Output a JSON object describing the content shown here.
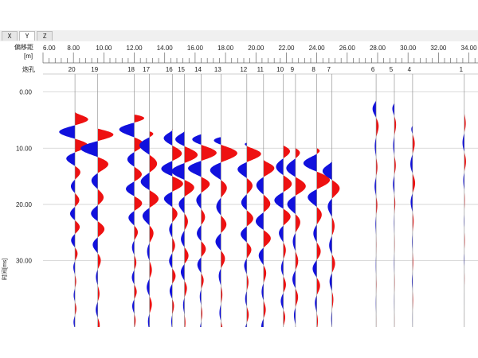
{
  "tabs": [
    {
      "label": "X",
      "active": false
    },
    {
      "label": "Y",
      "active": true
    },
    {
      "label": "Z",
      "active": false
    }
  ],
  "labels": {
    "offset_label": "偏移距",
    "offset_unit": "[m]",
    "shot_label": "炮孔",
    "time_label": "时间[ms]"
  },
  "colors": {
    "positive": "#ee1111",
    "negative": "#1111dd",
    "grid": "#cfcfcf",
    "axis": "#888888"
  },
  "chart_data": {
    "type": "seismic-wiggle",
    "x_axis": {
      "label": "偏移距 [m]",
      "min": 6.0,
      "max": 34.6,
      "ticks": [
        6,
        8,
        10,
        12,
        14,
        16,
        18,
        20,
        22,
        24,
        26,
        28,
        30,
        32,
        34
      ],
      "tick_labels": [
        "6.00",
        "8.00",
        "10.00",
        "12.00",
        "14.00",
        "16.00",
        "18.00",
        "20.00",
        "22.00",
        "24.00",
        "26.00",
        "28.00",
        "30.00",
        "32.00",
        "34.00"
      ]
    },
    "y_axis": {
      "label": "时间[ms]",
      "min": -3.2,
      "max": 41.8,
      "reversed": true,
      "ticks": [
        0,
        10,
        20,
        30
      ],
      "tick_labels": [
        "0.00",
        "10.00",
        "20.00",
        "30.00"
      ]
    },
    "grid": true,
    "traces": [
      {
        "shot": "20",
        "x": 8.1,
        "start": 3.5,
        "amp": 0.95,
        "freq": 1.3
      },
      {
        "shot": "19",
        "x": 9.6,
        "start": 6.5,
        "amp": 1.1,
        "freq": 1.1
      },
      {
        "shot": "18",
        "x": 12.0,
        "start": 4.0,
        "amp": 1.1,
        "freq": 1.2
      },
      {
        "shot": "17",
        "x": 13.0,
        "start": 7.0,
        "amp": 1.0,
        "freq": 1.0
      },
      {
        "shot": "16",
        "x": 14.5,
        "start": 6.5,
        "amp": 1.0,
        "freq": 1.15
      },
      {
        "shot": "15",
        "x": 15.3,
        "start": 7.0,
        "amp": 1.0,
        "freq": 1.05
      },
      {
        "shot": "14",
        "x": 16.4,
        "start": 7.5,
        "amp": 0.95,
        "freq": 1.1
      },
      {
        "shot": "13",
        "x": 17.7,
        "start": 8.0,
        "amp": 0.95,
        "freq": 1.0
      },
      {
        "shot": "12",
        "x": 19.4,
        "start": 9.0,
        "amp": 0.9,
        "freq": 1.1
      },
      {
        "shot": "11",
        "x": 20.5,
        "start": 12.0,
        "amp": 0.9,
        "freq": 1.0
      },
      {
        "shot": "10",
        "x": 21.8,
        "start": 9.5,
        "amp": 0.85,
        "freq": 1.05
      },
      {
        "shot": "9",
        "x": 22.6,
        "start": 10.0,
        "amp": 0.8,
        "freq": 0.95
      },
      {
        "shot": "8",
        "x": 24.0,
        "start": 10.0,
        "amp": 0.9,
        "freq": 1.0
      },
      {
        "shot": "7",
        "x": 25.0,
        "start": 12.0,
        "amp": 0.55,
        "freq": 0.95
      },
      {
        "shot": "6",
        "x": 27.9,
        "start": 1.5,
        "amp": 0.22,
        "freq": 0.9
      },
      {
        "shot": "5",
        "x": 29.1,
        "start": 2.0,
        "amp": 0.18,
        "freq": 0.9
      },
      {
        "shot": "4",
        "x": 30.3,
        "start": 6.0,
        "amp": 0.25,
        "freq": 0.9
      },
      {
        "shot": "1",
        "x": 33.7,
        "start": 3.0,
        "amp": 0.15,
        "freq": 0.9
      }
    ]
  }
}
